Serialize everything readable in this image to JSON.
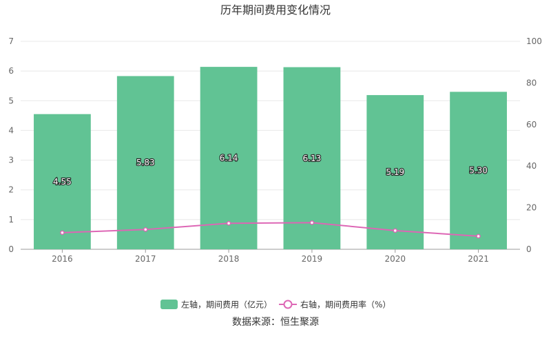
{
  "chart_data": {
    "type": "bar",
    "title": "历年期间费用变化情况",
    "categories": [
      "2016",
      "2017",
      "2018",
      "2019",
      "2020",
      "2021"
    ],
    "series": [
      {
        "name": "左轴，期间费用（亿元）",
        "type": "bar",
        "axis": "left",
        "values": [
          4.55,
          5.83,
          6.14,
          6.13,
          5.19,
          5.3
        ],
        "labels": [
          "4.55",
          "5.83",
          "6.14",
          "6.13",
          "5.19",
          "5.30"
        ]
      },
      {
        "name": "右轴，期间费用率（%）",
        "type": "line",
        "axis": "right",
        "values": [
          8.0,
          9.5,
          12.5,
          12.8,
          9.0,
          6.3
        ]
      }
    ],
    "ylim_left": [
      0,
      7
    ],
    "yticks_left": [
      "0",
      "1",
      "2",
      "3",
      "4",
      "5",
      "6",
      "7"
    ],
    "ylim_right": [
      0,
      100
    ],
    "yticks_right": [
      "0",
      "20",
      "40",
      "60",
      "80",
      "100"
    ],
    "grid": true,
    "legend_position": "bottom",
    "colors": {
      "bar": "#61c394",
      "line": "#dd66b5",
      "grid": "#e8e8e8",
      "axis": "#999999"
    }
  },
  "footer": {
    "source": "数据来源：恒生聚源"
  }
}
